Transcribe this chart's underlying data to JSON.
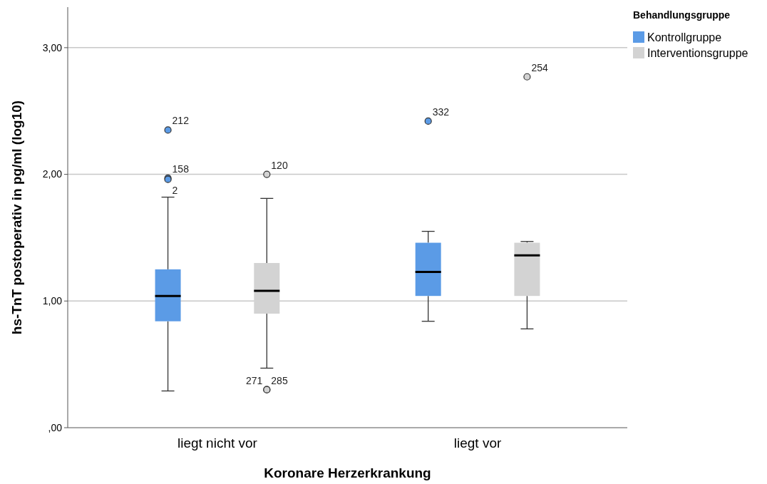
{
  "chart_data": {
    "type": "box",
    "xlabel": "Koronare Herzerkrankung",
    "ylabel": "hs-TnT postoperativ in pg/ml (log10)",
    "legend_title": "Behandlungsgruppe",
    "legend": "top right",
    "grid": "y",
    "categories": [
      "liegt nicht vor",
      "liegt vor"
    ],
    "ylim": [
      0,
      3.32
    ],
    "yticks": [
      {
        "value": 0,
        "label": ",00"
      },
      {
        "value": 1,
        "label": "1,00"
      },
      {
        "value": 2,
        "label": "2,00"
      },
      {
        "value": 3,
        "label": "3,00"
      }
    ],
    "series": [
      {
        "type": "box",
        "name": "Kontrollgruppe",
        "color": "#5b9be6",
        "boxes": [
          {
            "low": 0.29,
            "q1": 0.84,
            "median": 1.04,
            "q3": 1.25,
            "high": 1.82,
            "outliers": [
              2.35,
              1.97,
              1.96
            ]
          },
          {
            "low": 0.84,
            "q1": 1.04,
            "median": 1.23,
            "q3": 1.46,
            "high": 1.55,
            "outliers": [
              2.42
            ]
          }
        ]
      },
      {
        "type": "box",
        "name": "Interventionsgruppe",
        "color": "#d3d3d3",
        "boxes": [
          {
            "low": 0.47,
            "q1": 0.9,
            "median": 1.08,
            "q3": 1.3,
            "high": 1.81,
            "outliers": [
              2.0,
              0.3,
              0.3
            ]
          },
          {
            "low": 0.78,
            "q1": 1.04,
            "median": 1.36,
            "q3": 1.46,
            "high": 1.47,
            "outliers": [
              2.77
            ]
          }
        ]
      }
    ],
    "annotations": [
      "212",
      "158",
      "2",
      "332",
      "120",
      "285",
      "271",
      "254"
    ]
  }
}
